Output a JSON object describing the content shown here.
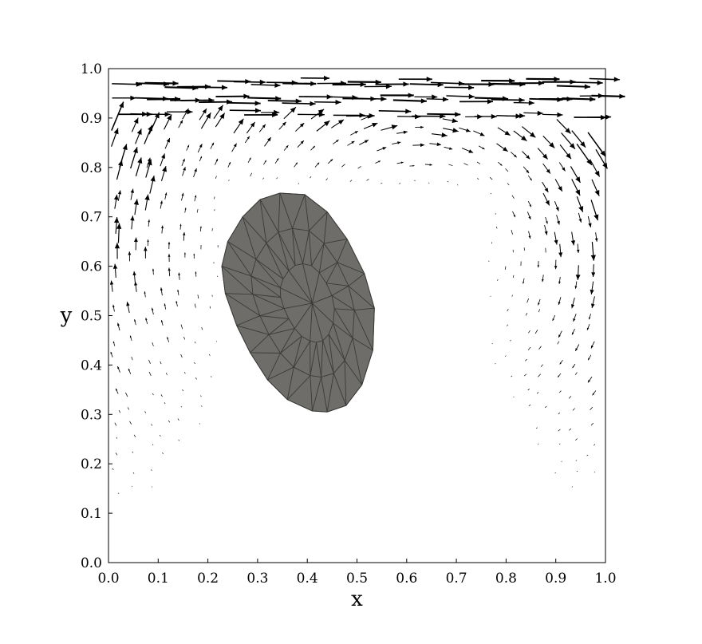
{
  "chart_data": {
    "type": "scatter",
    "title": "",
    "xlabel": "x",
    "ylabel": "y",
    "xlim": [
      0.0,
      1.0
    ],
    "ylim": [
      0.0,
      1.0
    ],
    "xticks": [
      "0.0",
      "0.1",
      "0.2",
      "0.3",
      "0.4",
      "0.5",
      "0.6",
      "0.7",
      "0.8",
      "0.9",
      "1.0"
    ],
    "yticks": [
      "0.0",
      "0.1",
      "0.2",
      "0.3",
      "0.4",
      "0.5",
      "0.6",
      "0.7",
      "0.8",
      "0.9",
      "1.0"
    ],
    "grid": false,
    "legend": "none",
    "colors": {
      "arrows": "#000000",
      "body_fill": "#6e6d69",
      "mesh_edges": "#3a3a38",
      "frame": "#000000"
    },
    "vector_field": {
      "description_of_flow": "lid-driven cavity, clockwise primary vortex",
      "lid_velocity_direction": "+x",
      "vortex_center": [
        0.62,
        0.62
      ],
      "sample_spacing": 0.033
    },
    "body": {
      "shape": "ellipse-meshed",
      "center": [
        0.41,
        0.525
      ],
      "semi_axis_major": 0.235,
      "semi_axis_minor": 0.165,
      "tilt_deg": 68,
      "boundary": [
        [
          0.345,
          0.748
        ],
        [
          0.395,
          0.745
        ],
        [
          0.44,
          0.71
        ],
        [
          0.48,
          0.655
        ],
        [
          0.515,
          0.585
        ],
        [
          0.535,
          0.515
        ],
        [
          0.532,
          0.43
        ],
        [
          0.51,
          0.36
        ],
        [
          0.478,
          0.318
        ],
        [
          0.44,
          0.305
        ],
        [
          0.41,
          0.307
        ],
        [
          0.36,
          0.33
        ],
        [
          0.32,
          0.37
        ],
        [
          0.285,
          0.425
        ],
        [
          0.258,
          0.48
        ],
        [
          0.235,
          0.545
        ],
        [
          0.228,
          0.6
        ],
        [
          0.24,
          0.65
        ],
        [
          0.27,
          0.7
        ],
        [
          0.305,
          0.735
        ]
      ]
    }
  }
}
